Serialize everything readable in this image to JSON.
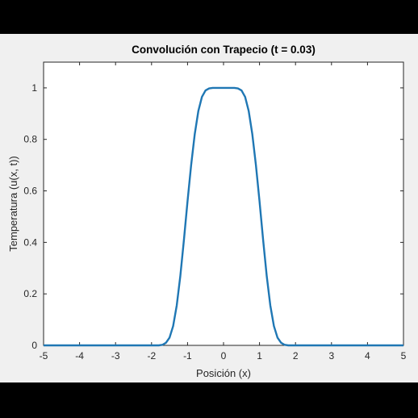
{
  "colors": {
    "background": "#000000",
    "figure": "#f0f0f0",
    "axes": "#ffffff",
    "line": "#1f77b4",
    "axis_line": "#262626"
  },
  "chart_data": {
    "type": "line",
    "title": "Convolución con Trapecio (t = 0.03)",
    "xlabel": "Posición (x)",
    "ylabel": "Temperatura (u(x, t))",
    "xlim": [
      -5,
      5
    ],
    "ylim": [
      0,
      1.1
    ],
    "xticks": [
      -5,
      -4,
      -3,
      -2,
      -1,
      0,
      1,
      2,
      3,
      4,
      5
    ],
    "xtick_labels": [
      "-5",
      "-4",
      "-3",
      "-2",
      "-1",
      "0",
      "1",
      "2",
      "3",
      "4",
      "5"
    ],
    "yticks": [
      0,
      0.2,
      0.4,
      0.6,
      0.8,
      1
    ],
    "ytick_labels": [
      "0",
      "0.2",
      "0.4",
      "0.6",
      "0.8",
      "1"
    ],
    "grid": false,
    "series": [
      {
        "x": [
          -5,
          -2,
          -1.8,
          -1.7,
          -1.6,
          -1.5,
          -1.4,
          -1.3,
          -1.2,
          -1.1,
          -1.0,
          -0.9,
          -0.8,
          -0.7,
          -0.6,
          -0.5,
          -0.4,
          -0.3,
          -0.2,
          -0.1,
          0,
          0.1,
          0.2,
          0.3,
          0.4,
          0.5,
          0.6,
          0.7,
          0.8,
          0.9,
          1.0,
          1.1,
          1.2,
          1.3,
          1.4,
          1.5,
          1.6,
          1.7,
          1.8,
          2,
          5
        ],
        "y": [
          0,
          0,
          0.0,
          0.002,
          0.01,
          0.03,
          0.075,
          0.155,
          0.27,
          0.41,
          0.56,
          0.7,
          0.82,
          0.91,
          0.965,
          0.99,
          0.998,
          1.0,
          1.0,
          1.0,
          1.0,
          1.0,
          1.0,
          1.0,
          0.998,
          0.99,
          0.965,
          0.91,
          0.82,
          0.7,
          0.56,
          0.41,
          0.27,
          0.155,
          0.075,
          0.03,
          0.01,
          0.002,
          0.0,
          0,
          0
        ]
      }
    ]
  }
}
